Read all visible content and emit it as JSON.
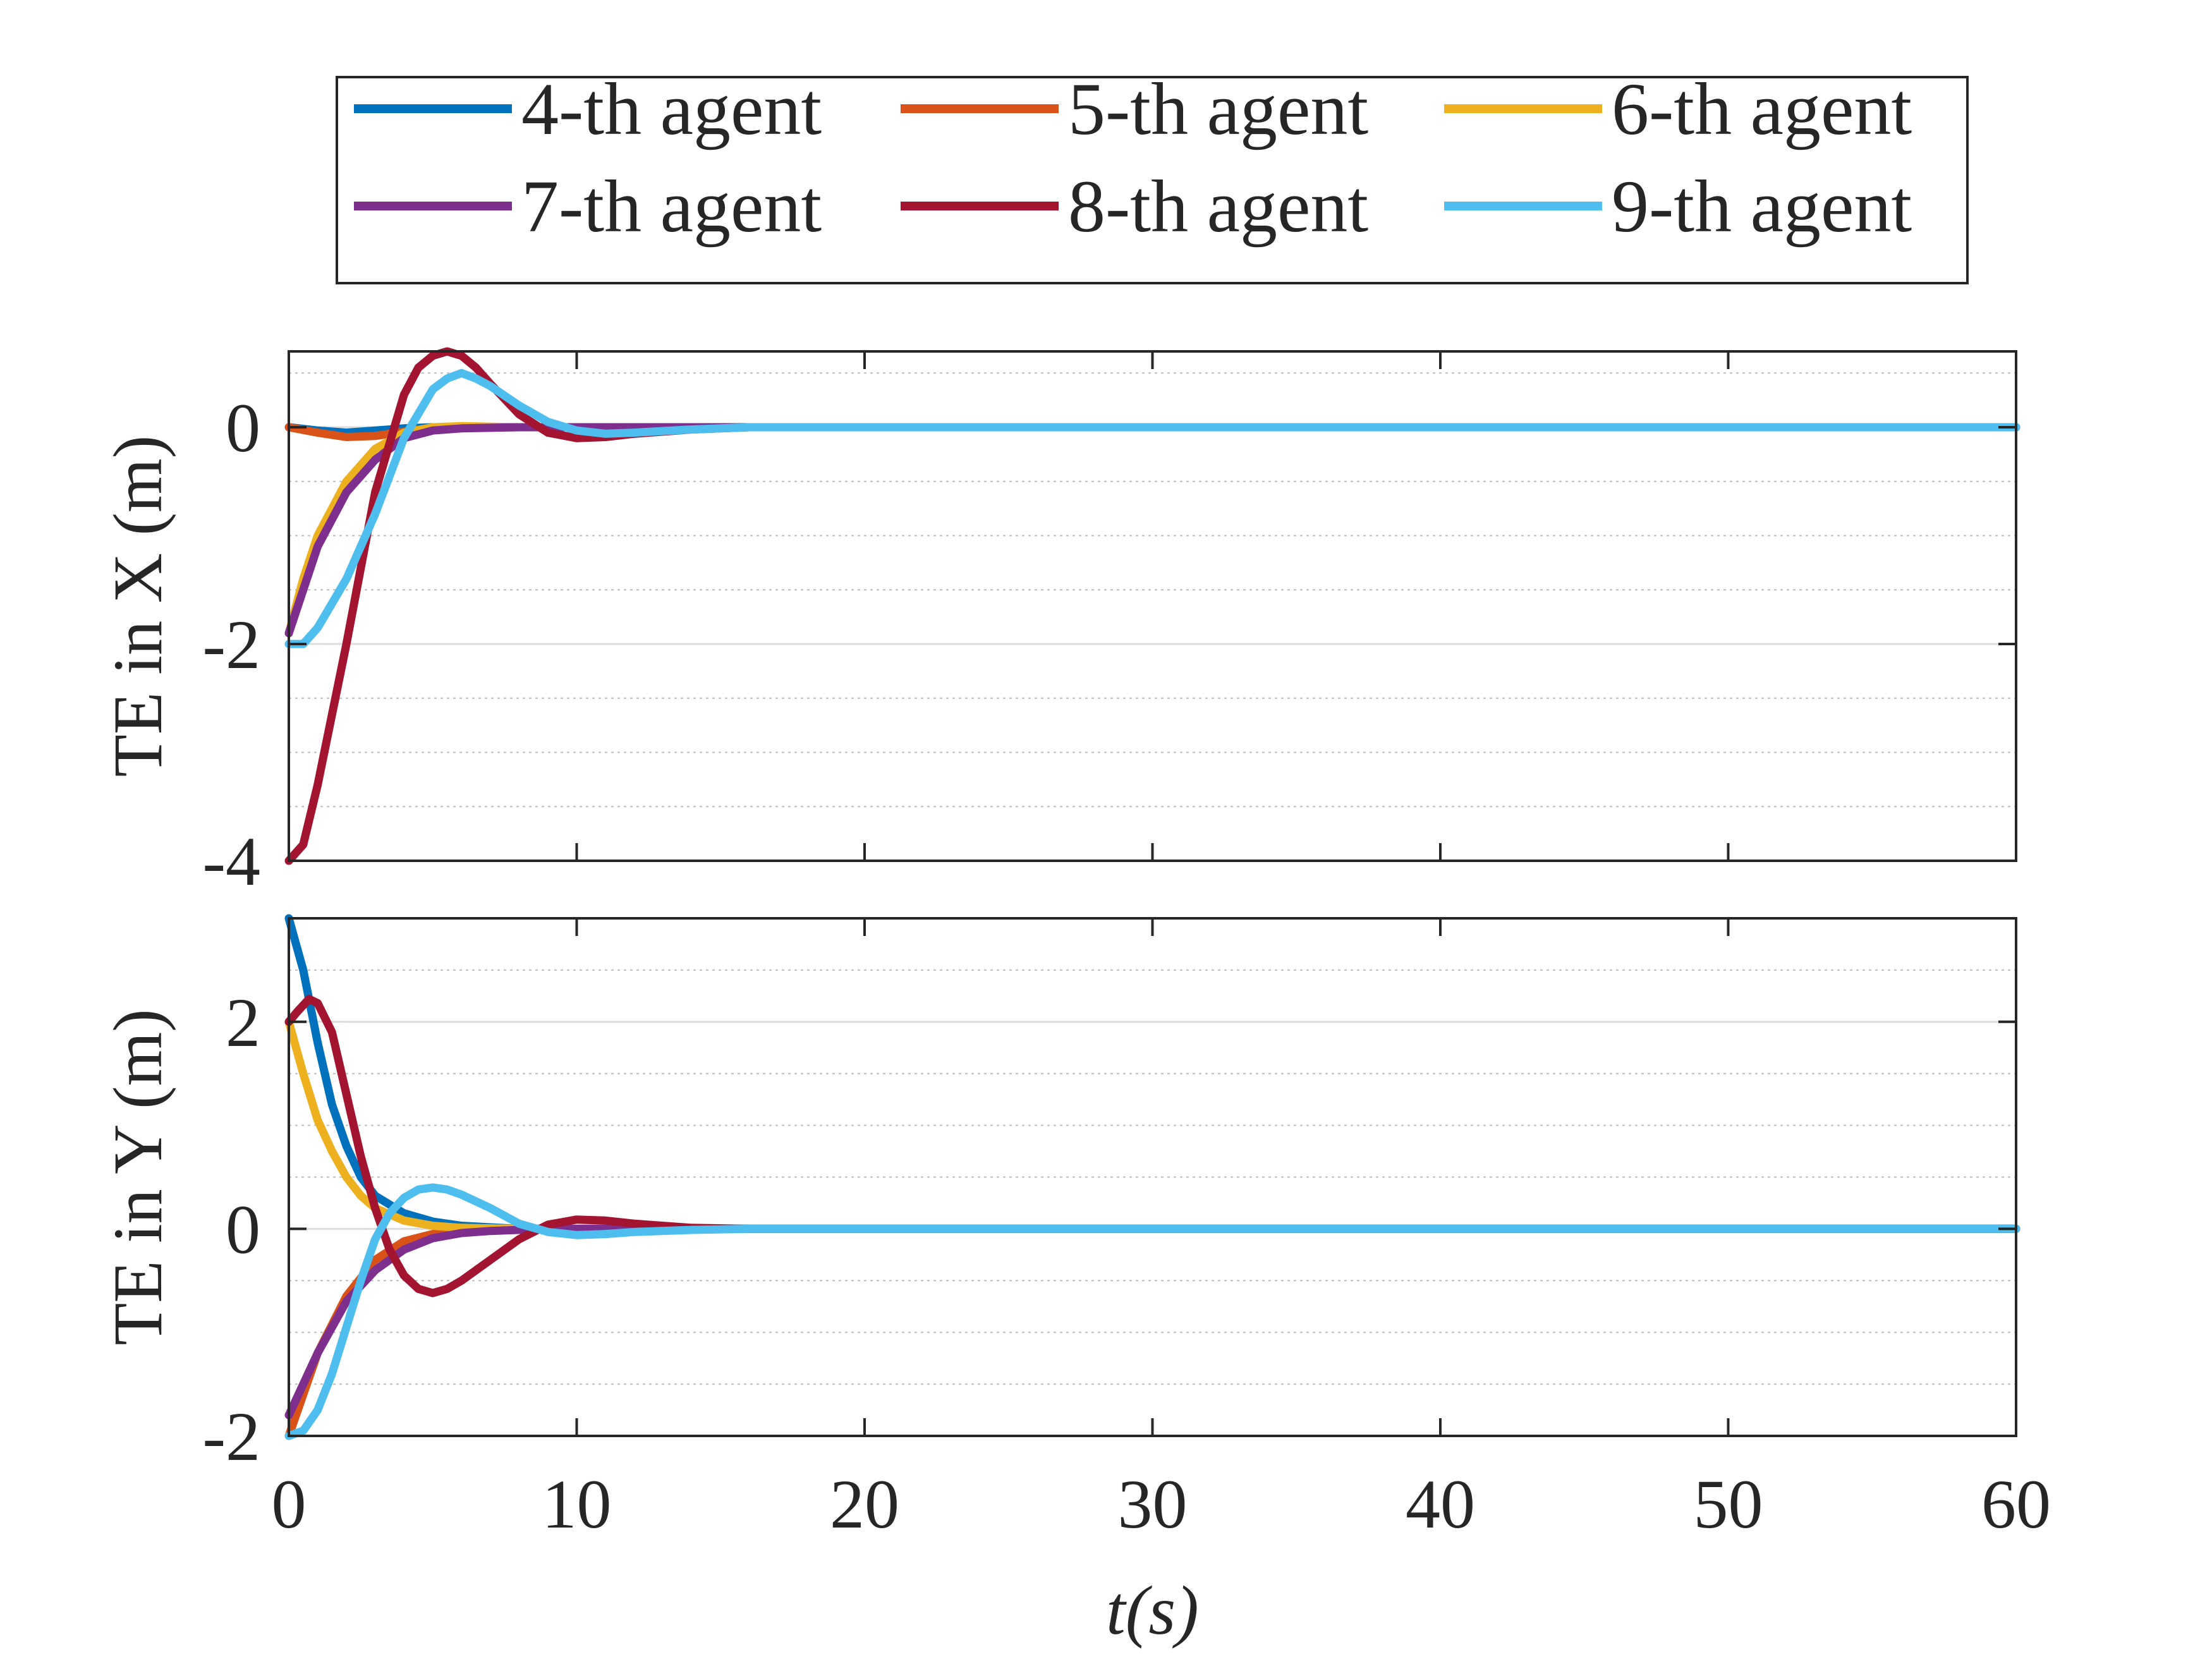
{
  "legend": {
    "entries": [
      {
        "label": "4-th agent",
        "color": "#0072BD"
      },
      {
        "label": "5-th agent",
        "color": "#D95319"
      },
      {
        "label": "6-th agent",
        "color": "#EDB120"
      },
      {
        "label": "7-th agent",
        "color": "#7E2F8E"
      },
      {
        "label": "8-th agent",
        "color": "#A2142F"
      },
      {
        "label": "9-th agent",
        "color": "#4DBEEE"
      }
    ]
  },
  "chart_data": [
    {
      "type": "line",
      "ylabel": "TE in X (m)",
      "xlabel": "",
      "xlim": [
        0,
        60
      ],
      "ylim": [
        -4,
        0.7
      ],
      "yticks": [
        0,
        -2,
        -4
      ],
      "ytick_labels": [
        "0",
        "-2",
        "-4"
      ],
      "xticks": [
        0,
        10,
        20,
        30,
        40,
        50,
        60
      ],
      "grid": "on (major and minor y grid)",
      "series": [
        {
          "name": "4-th agent",
          "color": "#0072BD",
          "x": [
            0,
            1,
            2,
            3,
            4,
            5,
            6,
            8,
            10,
            15,
            20,
            60
          ],
          "y": [
            0,
            -0.03,
            -0.05,
            -0.03,
            -0.01,
            0,
            0,
            0,
            0,
            0,
            0,
            0
          ]
        },
        {
          "name": "5-th agent",
          "color": "#D95319",
          "x": [
            0,
            1,
            2,
            3,
            4,
            5,
            6,
            8,
            10,
            15,
            20,
            60
          ],
          "y": [
            0,
            -0.05,
            -0.09,
            -0.08,
            -0.04,
            -0.01,
            0,
            0,
            0,
            0,
            0,
            0
          ]
        },
        {
          "name": "6-th agent",
          "color": "#EDB120",
          "x": [
            0,
            0.5,
            1,
            2,
            3,
            4,
            5,
            6,
            8,
            10,
            15,
            20,
            60
          ],
          "y": [
            -1.9,
            -1.4,
            -1.0,
            -0.5,
            -0.2,
            -0.05,
            0,
            0.01,
            0,
            0,
            0,
            0,
            0
          ]
        },
        {
          "name": "7-th agent",
          "color": "#7E2F8E",
          "x": [
            0,
            0.5,
            1,
            2,
            3,
            4,
            5,
            6,
            8,
            10,
            15,
            20,
            60
          ],
          "y": [
            -1.9,
            -1.5,
            -1.1,
            -0.6,
            -0.3,
            -0.1,
            -0.03,
            -0.01,
            0,
            0,
            0,
            0,
            0
          ]
        },
        {
          "name": "8-th agent",
          "color": "#A2142F",
          "x": [
            0,
            0.5,
            1,
            2,
            3,
            4,
            4.5,
            5,
            5.5,
            6,
            6.5,
            7,
            8,
            9,
            10,
            11,
            12,
            14,
            16,
            20,
            60
          ],
          "y": [
            -4,
            -3.85,
            -3.3,
            -2.0,
            -0.6,
            0.3,
            0.55,
            0.66,
            0.7,
            0.66,
            0.55,
            0.4,
            0.12,
            -0.05,
            -0.1,
            -0.09,
            -0.06,
            -0.02,
            0,
            0,
            0
          ]
        },
        {
          "name": "9-th agent",
          "color": "#4DBEEE",
          "x": [
            0,
            0.5,
            1,
            2,
            3,
            4,
            5,
            5.5,
            6,
            6.5,
            7,
            8,
            9,
            10,
            11,
            12,
            14,
            16,
            20,
            60
          ],
          "y": [
            -2,
            -2.0,
            -1.85,
            -1.4,
            -0.8,
            -0.1,
            0.35,
            0.45,
            0.5,
            0.45,
            0.38,
            0.2,
            0.05,
            -0.03,
            -0.06,
            -0.05,
            -0.02,
            0,
            0,
            0
          ]
        }
      ]
    },
    {
      "type": "line",
      "ylabel": "TE in Y (m)",
      "xlabel": "t(s)",
      "xlim": [
        0,
        60
      ],
      "ylim": [
        -2,
        3
      ],
      "yticks": [
        2,
        0,
        -2
      ],
      "ytick_labels": [
        "2",
        "0",
        "-2"
      ],
      "xticks": [
        0,
        10,
        20,
        30,
        40,
        50,
        60
      ],
      "xtick_labels": [
        "0",
        "10",
        "20",
        "30",
        "40",
        "50",
        "60"
      ],
      "grid": "on (major and minor y grid)",
      "series": [
        {
          "name": "4-th agent",
          "color": "#0072BD",
          "x": [
            0,
            0.5,
            1,
            1.5,
            2,
            2.5,
            3,
            4,
            5,
            6,
            8,
            10,
            15,
            20,
            60
          ],
          "y": [
            3.0,
            2.5,
            1.8,
            1.2,
            0.8,
            0.5,
            0.32,
            0.15,
            0.07,
            0.03,
            0,
            0,
            0,
            0,
            0
          ]
        },
        {
          "name": "5-th agent",
          "color": "#D95319",
          "x": [
            0,
            0.5,
            1,
            2,
            3,
            4,
            5,
            6,
            8,
            10,
            15,
            20,
            60
          ],
          "y": [
            -2.0,
            -1.6,
            -1.2,
            -0.65,
            -0.3,
            -0.12,
            -0.05,
            -0.02,
            0,
            0,
            0,
            0,
            0
          ]
        },
        {
          "name": "6-th agent",
          "color": "#EDB120",
          "x": [
            0,
            0.5,
            1,
            1.5,
            2,
            2.5,
            3,
            4,
            5,
            6,
            8,
            10,
            15,
            20,
            60
          ],
          "y": [
            2.0,
            1.5,
            1.05,
            0.75,
            0.5,
            0.32,
            0.2,
            0.08,
            0.03,
            0.01,
            0,
            0,
            0,
            0,
            0
          ]
        },
        {
          "name": "7-th agent",
          "color": "#7E2F8E",
          "x": [
            0,
            0.5,
            1,
            2,
            3,
            4,
            5,
            6,
            7,
            8,
            10,
            15,
            20,
            60
          ],
          "y": [
            -1.8,
            -1.5,
            -1.2,
            -0.7,
            -0.4,
            -0.2,
            -0.09,
            -0.04,
            -0.02,
            -0.01,
            0,
            0,
            0,
            0
          ]
        },
        {
          "name": "8-th agent",
          "color": "#A2142F",
          "x": [
            0,
            0.3,
            0.7,
            1,
            1.5,
            2,
            2.5,
            3,
            3.5,
            4,
            4.5,
            5,
            5.5,
            6,
            7,
            8,
            9,
            10,
            11,
            12,
            14,
            16,
            20,
            60
          ],
          "y": [
            2.0,
            2.1,
            2.22,
            2.18,
            1.9,
            1.3,
            0.7,
            0.2,
            -0.2,
            -0.45,
            -0.58,
            -0.62,
            -0.58,
            -0.5,
            -0.3,
            -0.1,
            0.04,
            0.09,
            0.08,
            0.05,
            0.01,
            0,
            0,
            0
          ]
        },
        {
          "name": "9-th agent",
          "color": "#4DBEEE",
          "x": [
            0,
            0.5,
            1,
            1.5,
            2,
            2.5,
            3,
            3.5,
            4,
            4.5,
            5,
            5.5,
            6,
            7,
            8,
            9,
            10,
            11,
            12,
            14,
            16,
            20,
            60
          ],
          "y": [
            -2.0,
            -1.95,
            -1.75,
            -1.4,
            -0.95,
            -0.5,
            -0.1,
            0.15,
            0.3,
            0.38,
            0.4,
            0.38,
            0.33,
            0.2,
            0.05,
            -0.03,
            -0.06,
            -0.05,
            -0.03,
            -0.01,
            0,
            0,
            0
          ]
        }
      ]
    }
  ]
}
